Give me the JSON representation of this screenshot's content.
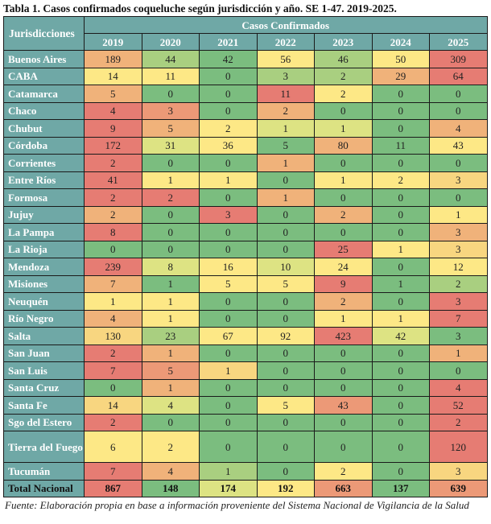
{
  "title": "Tabla 1. Casos confirmados coqueluche según jurisdicción y año. SE 1-47. 2019-2025.",
  "header": {
    "jurisdicciones": "Jurisdicciones",
    "group": "Casos Confirmados",
    "years": [
      "2019",
      "2020",
      "2021",
      "2022",
      "2023",
      "2024",
      "2025"
    ]
  },
  "palette": {
    "R": "#e67c73",
    "OR": "#ec9977",
    "O": "#f0b27a",
    "YO": "#f8d680",
    "Y": "#fde886",
    "YG": "#dde383",
    "LG": "#a9cf80",
    "G": "#7bbd7f"
  },
  "rows": [
    {
      "name": "Buenos Aires",
      "values": [
        "189",
        "44",
        "42",
        "56",
        "46",
        "50",
        "309"
      ],
      "colors": [
        "O",
        "LG",
        "G",
        "Y",
        "LG",
        "Y",
        "R"
      ]
    },
    {
      "name": "CABA",
      "values": [
        "14",
        "11",
        "0",
        "3",
        "2",
        "29",
        "64"
      ],
      "colors": [
        "Y",
        "Y",
        "G",
        "LG",
        "LG",
        "O",
        "R"
      ]
    },
    {
      "name": "Catamarca",
      "values": [
        "5",
        "0",
        "0",
        "11",
        "2",
        "0",
        "0"
      ],
      "colors": [
        "O",
        "G",
        "G",
        "R",
        "Y",
        "G",
        "G"
      ]
    },
    {
      "name": "Chaco",
      "values": [
        "4",
        "3",
        "0",
        "2",
        "0",
        "0",
        "0"
      ],
      "colors": [
        "R",
        "OR",
        "G",
        "O",
        "G",
        "G",
        "G"
      ]
    },
    {
      "name": "Chubut",
      "values": [
        "9",
        "5",
        "2",
        "1",
        "1",
        "0",
        "4"
      ],
      "colors": [
        "R",
        "O",
        "Y",
        "YG",
        "YG",
        "G",
        "O"
      ]
    },
    {
      "name": "Córdoba",
      "values": [
        "172",
        "31",
        "36",
        "5",
        "80",
        "11",
        "43"
      ],
      "colors": [
        "R",
        "YG",
        "Y",
        "G",
        "O",
        "G",
        "Y"
      ]
    },
    {
      "name": "Corrientes",
      "values": [
        "2",
        "0",
        "0",
        "1",
        "0",
        "0",
        "0"
      ],
      "colors": [
        "R",
        "G",
        "G",
        "O",
        "G",
        "G",
        "G"
      ]
    },
    {
      "name": "Entre Ríos",
      "values": [
        "41",
        "1",
        "1",
        "0",
        "1",
        "2",
        "3"
      ],
      "colors": [
        "R",
        "Y",
        "Y",
        "G",
        "Y",
        "Y",
        "YO"
      ]
    },
    {
      "name": "Formosa",
      "values": [
        "2",
        "2",
        "0",
        "1",
        "0",
        "0",
        "0"
      ],
      "colors": [
        "R",
        "R",
        "G",
        "O",
        "G",
        "G",
        "G"
      ]
    },
    {
      "name": "Jujuy",
      "values": [
        "2",
        "0",
        "3",
        "0",
        "2",
        "0",
        "1"
      ],
      "colors": [
        "O",
        "G",
        "R",
        "G",
        "O",
        "G",
        "Y"
      ]
    },
    {
      "name": "La Pampa",
      "values": [
        "8",
        "0",
        "0",
        "0",
        "0",
        "0",
        "3"
      ],
      "colors": [
        "R",
        "G",
        "G",
        "G",
        "G",
        "G",
        "O"
      ]
    },
    {
      "name": "La Rioja",
      "values": [
        "0",
        "0",
        "0",
        "0",
        "25",
        "1",
        "3"
      ],
      "colors": [
        "G",
        "G",
        "G",
        "G",
        "R",
        "Y",
        "YO"
      ]
    },
    {
      "name": "Mendoza",
      "values": [
        "239",
        "8",
        "16",
        "10",
        "24",
        "0",
        "12"
      ],
      "colors": [
        "R",
        "YG",
        "Y",
        "YG",
        "Y",
        "G",
        "Y"
      ]
    },
    {
      "name": "Misiones",
      "values": [
        "7",
        "1",
        "5",
        "5",
        "9",
        "1",
        "2"
      ],
      "colors": [
        "O",
        "G",
        "Y",
        "Y",
        "R",
        "G",
        "LG"
      ]
    },
    {
      "name": "Neuquén",
      "values": [
        "1",
        "1",
        "0",
        "0",
        "2",
        "0",
        "3"
      ],
      "colors": [
        "Y",
        "Y",
        "G",
        "G",
        "O",
        "G",
        "R"
      ]
    },
    {
      "name": "Río Negro",
      "values": [
        "4",
        "1",
        "0",
        "0",
        "1",
        "1",
        "7"
      ],
      "colors": [
        "O",
        "Y",
        "G",
        "G",
        "Y",
        "Y",
        "R"
      ]
    },
    {
      "name": "Salta",
      "values": [
        "130",
        "23",
        "67",
        "92",
        "423",
        "42",
        "3"
      ],
      "colors": [
        "YO",
        "LG",
        "Y",
        "Y",
        "R",
        "YG",
        "G"
      ]
    },
    {
      "name": "San Juan",
      "values": [
        "2",
        "1",
        "0",
        "0",
        "0",
        "0",
        "1"
      ],
      "colors": [
        "R",
        "O",
        "G",
        "G",
        "G",
        "G",
        "O"
      ]
    },
    {
      "name": "San Luis",
      "values": [
        "7",
        "5",
        "1",
        "0",
        "0",
        "0",
        "0"
      ],
      "colors": [
        "R",
        "OR",
        "YO",
        "G",
        "G",
        "G",
        "G"
      ]
    },
    {
      "name": "Santa Cruz",
      "values": [
        "0",
        "1",
        "0",
        "0",
        "0",
        "0",
        "4"
      ],
      "colors": [
        "G",
        "O",
        "G",
        "G",
        "G",
        "G",
        "R"
      ]
    },
    {
      "name": "Santa Fe",
      "values": [
        "14",
        "4",
        "0",
        "5",
        "43",
        "0",
        "52"
      ],
      "colors": [
        "YO",
        "YG",
        "G",
        "Y",
        "OR",
        "G",
        "R"
      ]
    },
    {
      "name": "Sgo del Estero",
      "values": [
        "2",
        "0",
        "0",
        "0",
        "0",
        "0",
        "2"
      ],
      "colors": [
        "R",
        "G",
        "G",
        "G",
        "G",
        "G",
        "R"
      ]
    },
    {
      "name": "Tierra del Fuego",
      "values": [
        "6",
        "2",
        "0",
        "0",
        "0",
        "0",
        "120"
      ],
      "colors": [
        "Y",
        "Y",
        "G",
        "G",
        "G",
        "G",
        "R"
      ],
      "tall": true
    },
    {
      "name": "Tucumán",
      "values": [
        "7",
        "4",
        "1",
        "0",
        "2",
        "0",
        "3"
      ],
      "colors": [
        "R",
        "O",
        "LG",
        "G",
        "Y",
        "G",
        "YO"
      ]
    }
  ],
  "total": {
    "name": "Total Nacional",
    "values": [
      "867",
      "148",
      "174",
      "192",
      "663",
      "137",
      "639"
    ],
    "colors": [
      "R",
      "G",
      "YG",
      "Y",
      "OR",
      "G",
      "OR"
    ]
  },
  "footer": "Fuente: Elaboración propia en base a información proveniente del Sistema Nacional de Vigilancia de la Salud"
}
